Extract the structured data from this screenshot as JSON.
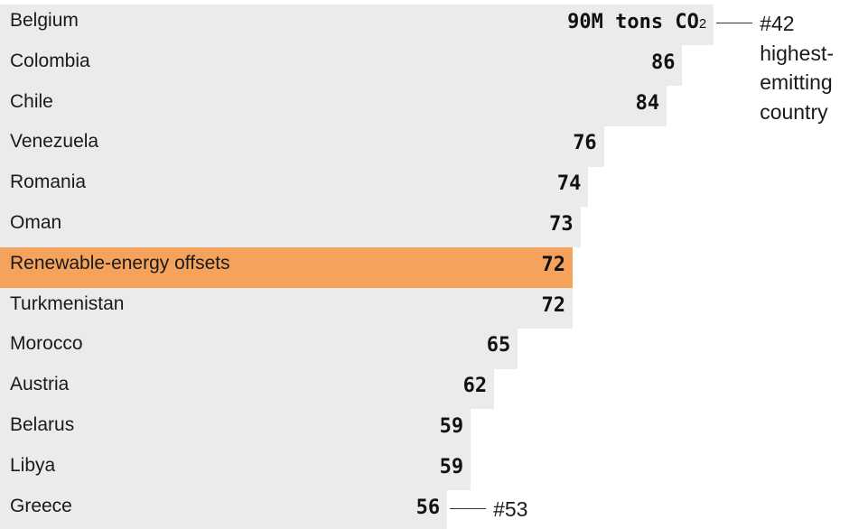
{
  "chart_data": {
    "type": "bar",
    "orientation": "horizontal",
    "unit": "M tons CO",
    "unit_subscript": "2",
    "categories": [
      "Belgium",
      "Colombia",
      "Chile",
      "Venezuela",
      "Romania",
      "Oman",
      "Renewable-energy offsets",
      "Turkmenistan",
      "Morocco",
      "Austria",
      "Belarus",
      "Libya",
      "Greece"
    ],
    "values": [
      90,
      86,
      84,
      76,
      74,
      73,
      72,
      72,
      65,
      62,
      59,
      59,
      56
    ],
    "highlight": "Renewable-energy offsets",
    "colors": {
      "bar": "#ebebeb",
      "highlight": "#f4a25c",
      "text": "#1a1a1a"
    },
    "annotations": [
      {
        "category": "Belgium",
        "text": "#42\nhighest-\nemitting\ncountry"
      },
      {
        "category": "Greece",
        "text": "#53"
      }
    ]
  }
}
